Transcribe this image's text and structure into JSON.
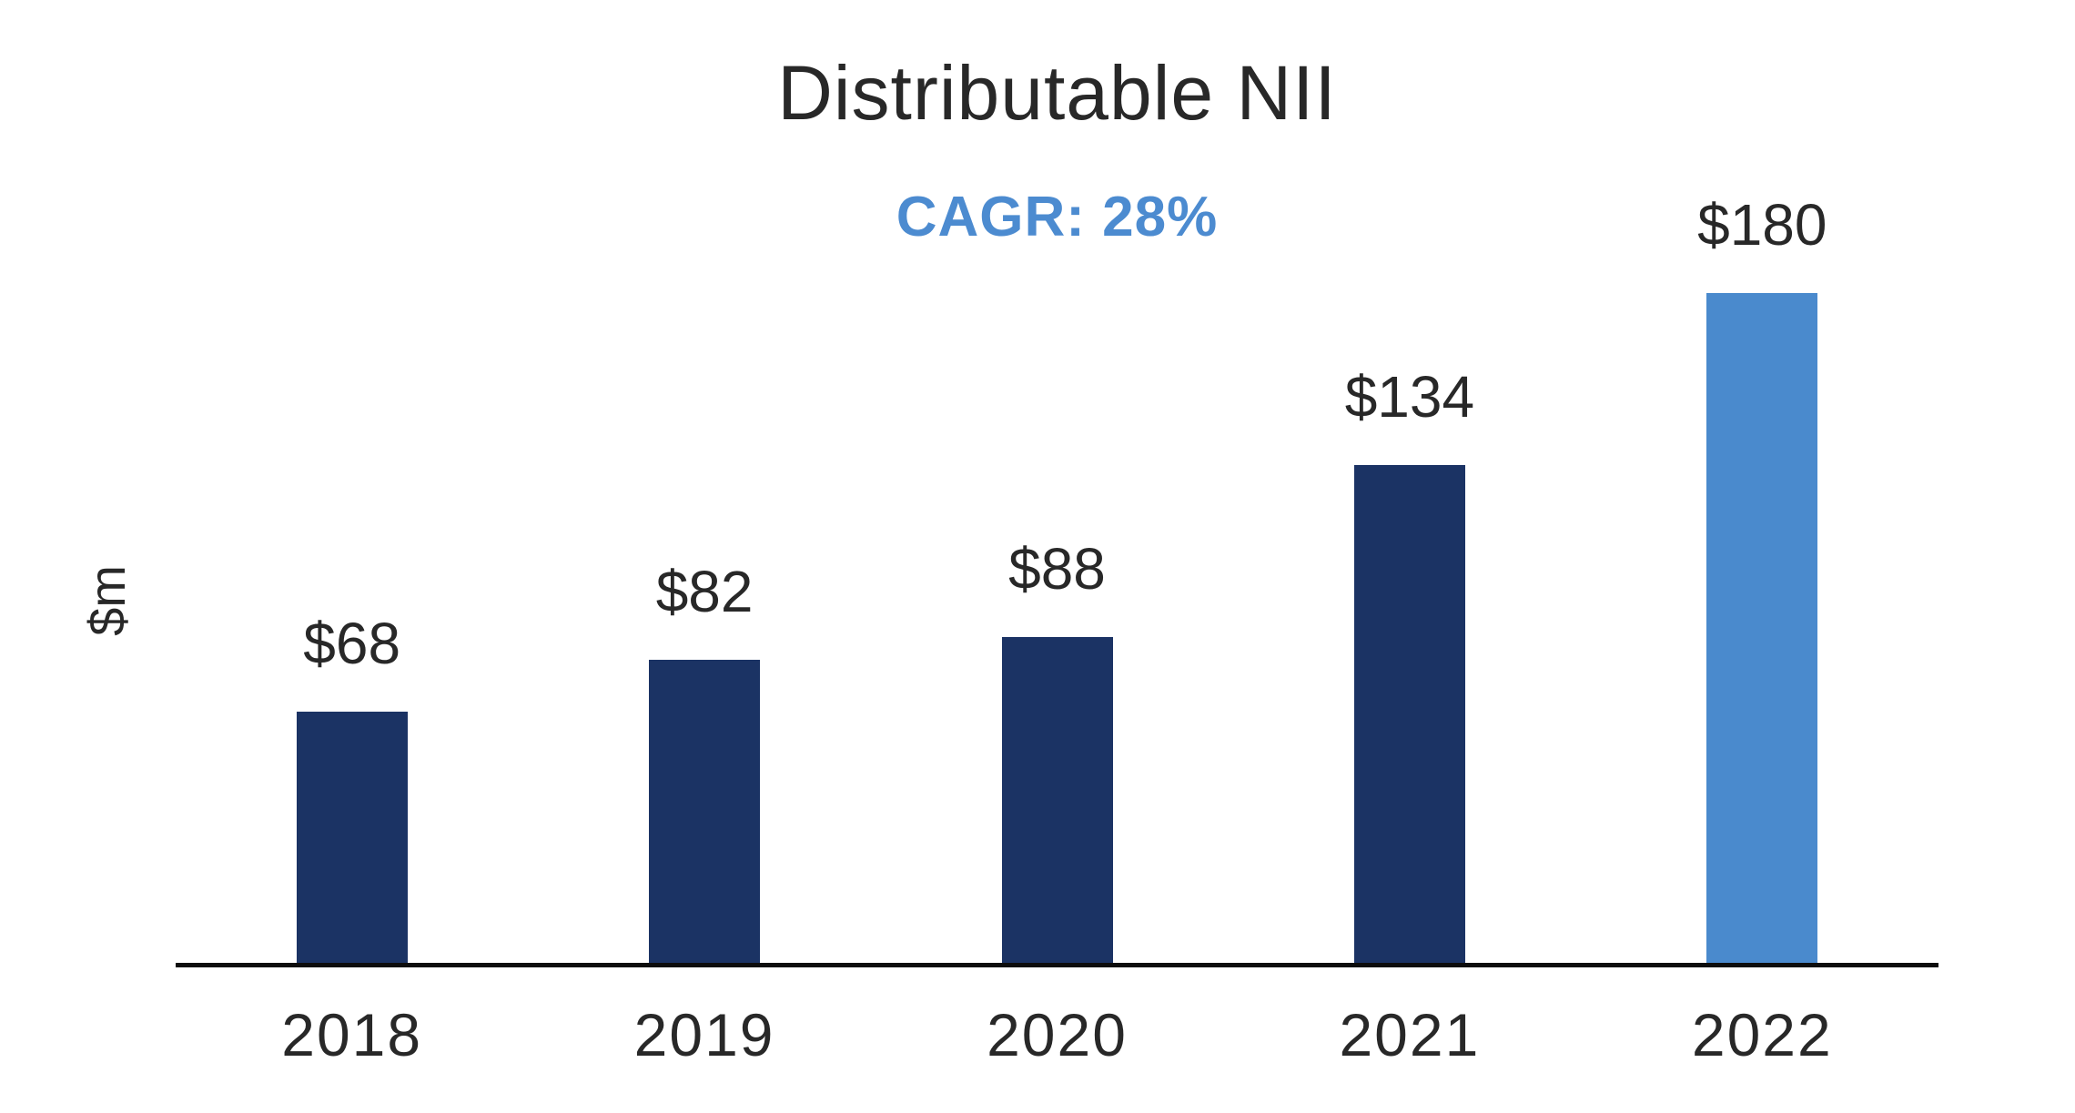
{
  "chart_data": {
    "type": "bar",
    "title": "Distributable NII",
    "subtitle": "CAGR: 28%",
    "ylabel": "$m",
    "xlabel": "",
    "categories": [
      "2018",
      "2019",
      "2020",
      "2021",
      "2022"
    ],
    "series": [
      {
        "name": "Distributable NII ($m)",
        "values": [
          68,
          82,
          88,
          134,
          180
        ]
      }
    ],
    "values": [
      68,
      82,
      88,
      134,
      180
    ],
    "value_labels": [
      "$68",
      "$82",
      "$88",
      "$134",
      "$180"
    ],
    "ylim": [
      0,
      180
    ],
    "grid": false,
    "legend": false,
    "highlight_index": 4,
    "colors": {
      "bar": "#1B3364",
      "bar_highlight": "#4A8ACD",
      "subtitle_text": "#4C8BD0",
      "text": "#282828",
      "axis": "#0D0D0D",
      "background": "#FFFFFF"
    }
  }
}
